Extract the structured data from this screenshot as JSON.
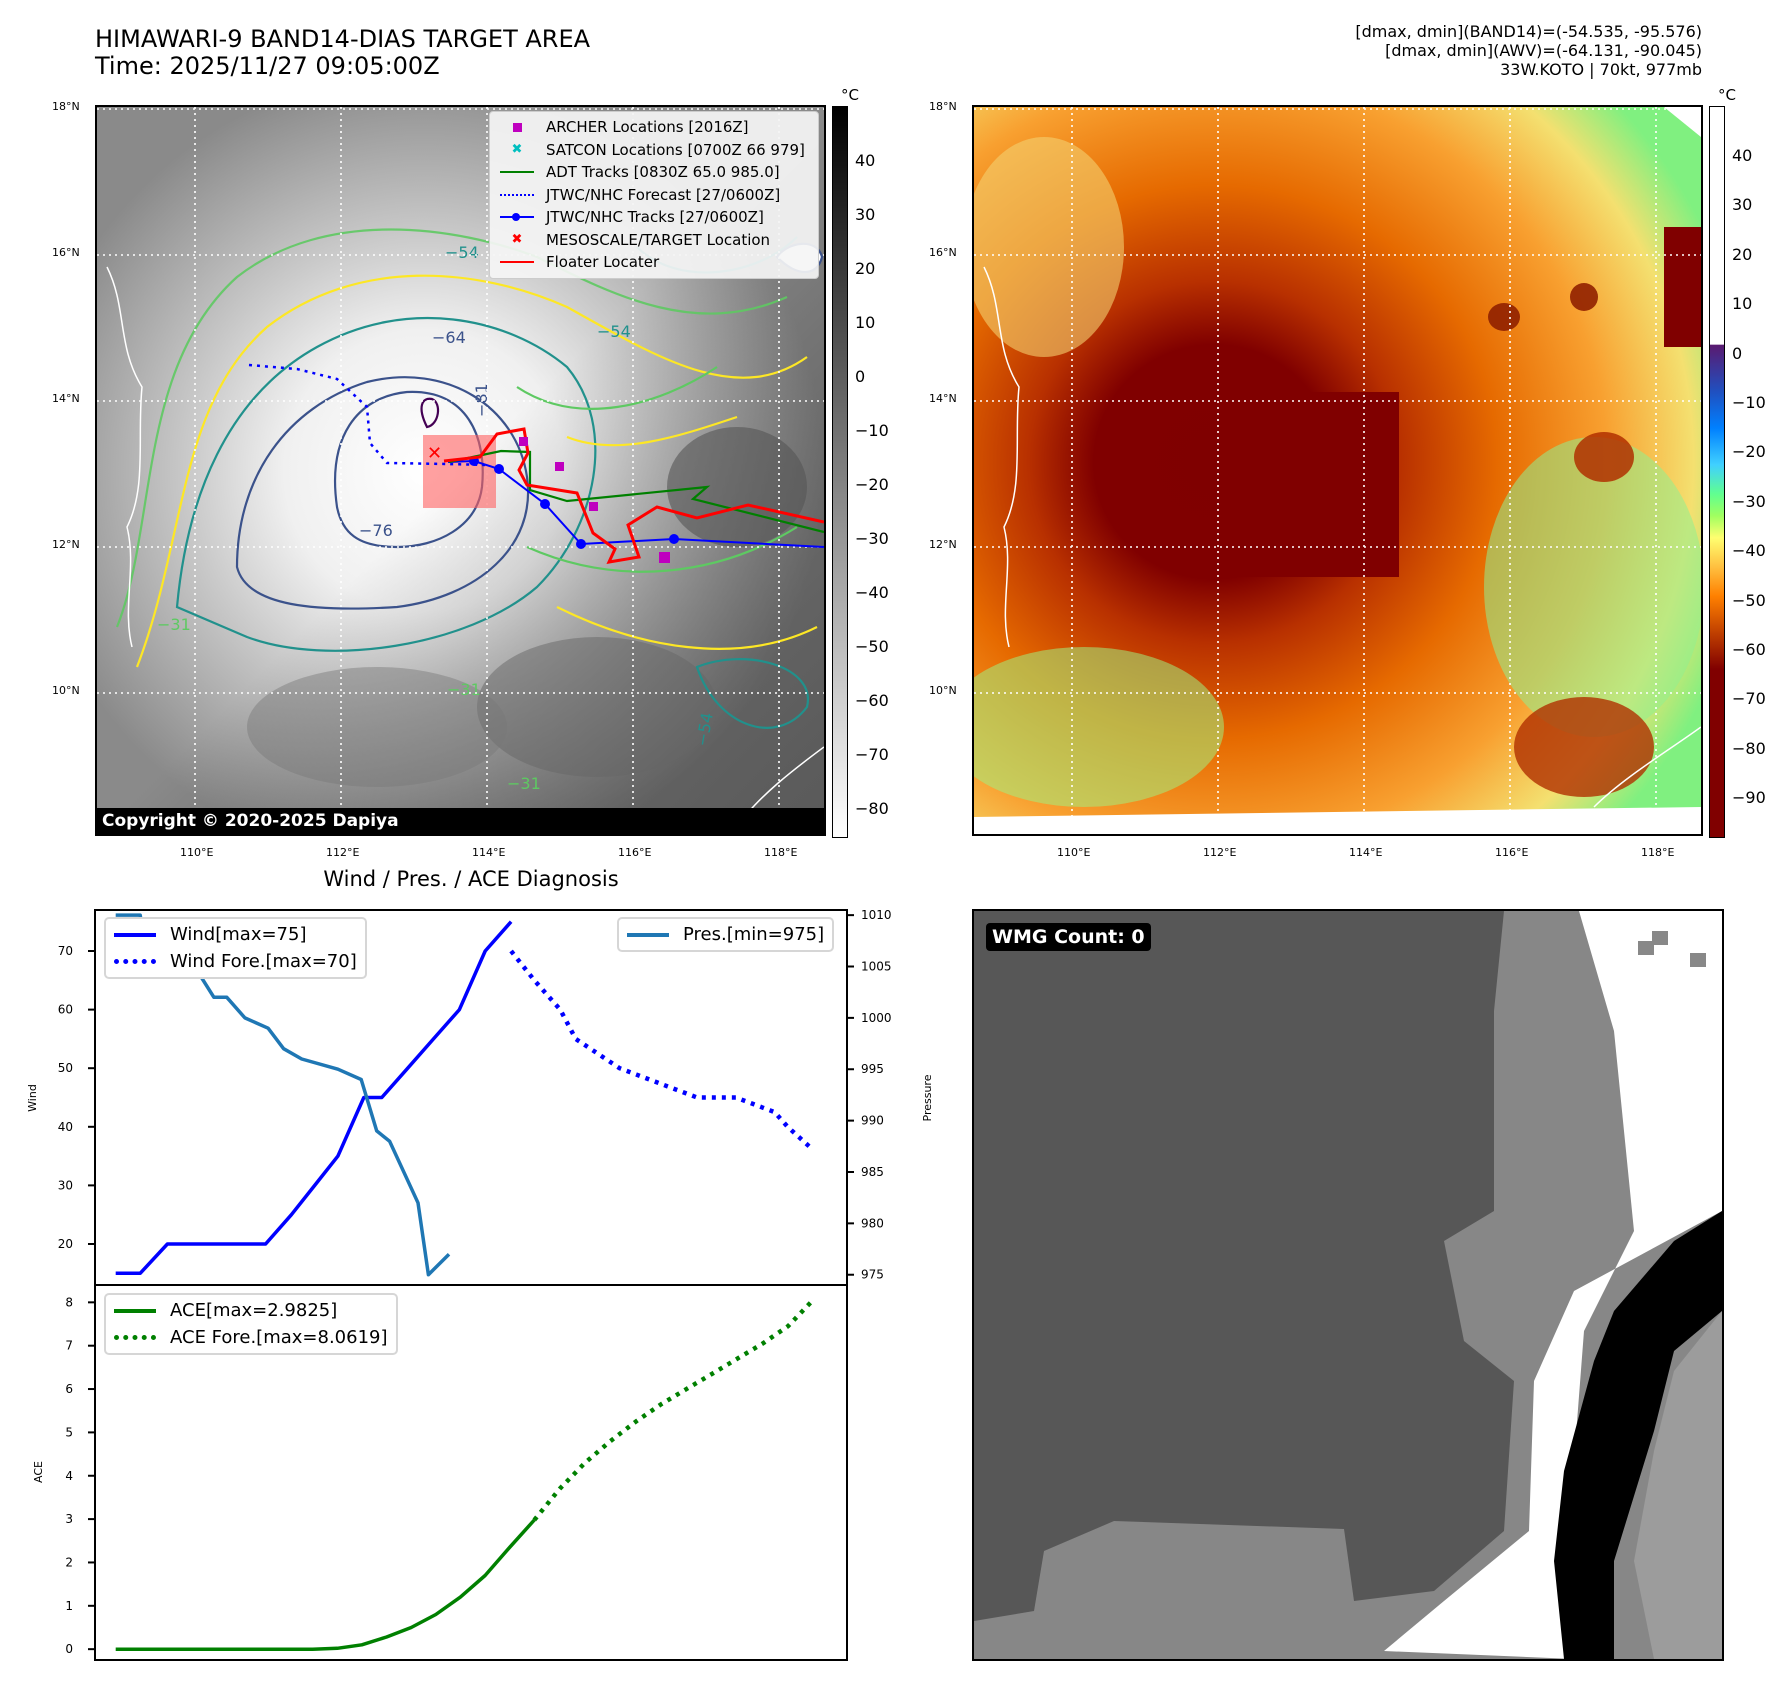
{
  "header": {
    "title_line1": "HIMAWARI-9 BAND14-DIAS TARGET AREA",
    "title_line2": "Time: 2025/11/27 09:05:00Z",
    "stats_line1": "[dmax, dmin](BAND14)=(-54.535, -95.576)",
    "stats_line2": "[dmax, dmin](AWV)=(-64.131, -90.045)",
    "stats_line3": "33W.KOTO | 70kt, 977mb"
  },
  "maps": {
    "lat_ticks": [
      "18°N",
      "16°N",
      "14°N",
      "12°N",
      "10°N"
    ],
    "lon_ticks": [
      "110°E",
      "112°E",
      "114°E",
      "116°E",
      "118°E"
    ],
    "left_map": {
      "colorbar_unit": "°C",
      "colorbar_ticks": [
        "40",
        "30",
        "20",
        "10",
        "0",
        "−10",
        "−20",
        "−30",
        "−40",
        "−50",
        "−60",
        "−70",
        "−80"
      ],
      "contour_labels": [
        "−54",
        "−64",
        "−76",
        "−81",
        "−31",
        "−31",
        "−31",
        "−54",
        "−54"
      ],
      "legend": [
        {
          "symbol": "square",
          "color": "#bf00bf",
          "label": "ARCHER Locations [2016Z]"
        },
        {
          "symbol": "x",
          "color": "#00bfbf",
          "label": "SATCON Locations [0700Z 66 979]"
        },
        {
          "symbol": "line",
          "color": "#008000",
          "label": "ADT Tracks [0830Z 65.0 985.0]"
        },
        {
          "symbol": "dotted",
          "color": "#0000ff",
          "label": "JTWC/NHC Forecast [27/0600Z]"
        },
        {
          "symbol": "line-dot",
          "color": "#0000ff",
          "label": "JTWC/NHC Tracks [27/0600Z]"
        },
        {
          "symbol": "x",
          "color": "#ff0000",
          "label": "MESOSCALE/TARGET Location"
        },
        {
          "symbol": "line",
          "color": "#ff0000",
          "label": "Floater Locater"
        }
      ],
      "copyright": "Copyright © 2020-2025 Dapiya"
    },
    "right_map": {
      "colorbar_unit": "°C",
      "colorbar_ticks": [
        "40",
        "30",
        "20",
        "10",
        "0",
        "−10",
        "−20",
        "−30",
        "−40",
        "−50",
        "−60",
        "−70",
        "−80",
        "−90"
      ]
    }
  },
  "wmg": {
    "badge": "WMG Count: 0"
  },
  "chart_data": [
    {
      "type": "line",
      "title": "Wind / Pres. / ACE Diagnosis",
      "ylabel": "Wind",
      "ylabel_right": "Pressure",
      "ylim": [
        13,
        77
      ],
      "ylim_right": [
        974,
        1010.5
      ],
      "xlim": [
        -0.8,
        28.3
      ],
      "yticks": [
        20,
        30,
        40,
        50,
        60,
        70
      ],
      "yticks_right": [
        975,
        980,
        985,
        990,
        995,
        1000,
        1005,
        1010
      ],
      "series": [
        {
          "name": "Wind[max=75]",
          "color": "#0000ff",
          "style": "solid",
          "axis": "left",
          "x": [
            0,
            1,
            2,
            3,
            4,
            5,
            6,
            7,
            8,
            9,
            10,
            11,
            12,
            13,
            14,
            15,
            16
          ],
          "values": [
            15,
            15,
            20,
            20,
            20,
            20,
            20,
            25,
            30,
            35,
            45,
            45,
            50,
            55,
            60,
            70,
            75
          ]
        },
        {
          "name": "Wind Fore.[max=70]",
          "color": "#0000ff",
          "style": "dotted",
          "axis": "left",
          "x": [
            17,
            18,
            19,
            20,
            21,
            22,
            23,
            24,
            25,
            26,
            27
          ],
          "values": [
            70,
            65,
            60,
            55,
            50,
            47.5,
            45,
            45,
            42.5,
            40,
            36
          ]
        },
        {
          "name": "Pres.[min=975]",
          "color": "#1f77b4",
          "style": "solid",
          "axis": "right",
          "x": [
            0,
            1,
            2,
            3,
            4,
            5,
            6,
            7,
            8,
            9,
            10,
            11,
            12,
            13,
            14,
            15,
            16,
            17
          ],
          "values": [
            1010,
            1010,
            1004,
            1004,
            1004,
            1002,
            1002,
            1000,
            999,
            997,
            996,
            995,
            994,
            989,
            988,
            982,
            975,
            977
          ]
        }
      ],
      "wind_x": [
        0,
        0.95,
        2,
        2.9,
        3.8,
        4.8,
        5.8,
        6.8,
        7.7,
        8.6,
        9.6,
        10.3,
        11.3,
        12.3,
        13.3,
        14.3,
        15.3,
        16.2,
        17.2,
        17.8,
        19.5,
        21,
        22.5,
        24,
        25.5,
        26,
        27
      ],
      "legend_left": [
        "Wind[max=75]",
        "Wind Fore.[max=70]"
      ],
      "legend_right": [
        "Pres.[min=975]"
      ]
    },
    {
      "type": "line",
      "title": "",
      "ylabel": "ACE",
      "ylim": [
        -0.25,
        8.4
      ],
      "xlim": [
        -0.8,
        28.3
      ],
      "yticks": [
        0,
        1,
        2,
        3,
        4,
        5,
        6,
        7,
        8
      ],
      "series": [
        {
          "name": "ACE[max=2.9825]",
          "color": "#008000",
          "style": "solid",
          "x": [
            0,
            1,
            2,
            3,
            4,
            5,
            6,
            7,
            8,
            9,
            10,
            11,
            12,
            13,
            14,
            15,
            16,
            17
          ],
          "values": [
            0,
            0,
            0,
            0,
            0,
            0,
            0,
            0,
            0,
            0.02,
            0.1,
            0.28,
            0.5,
            0.8,
            1.2,
            1.7,
            2.35,
            2.98
          ]
        },
        {
          "name": "ACE Fore.[max=8.0619]",
          "color": "#008000",
          "style": "dotted",
          "x": [
            17,
            18,
            19,
            20,
            21,
            22,
            23,
            24,
            25,
            26,
            27,
            28
          ],
          "values": [
            2.98,
            3.7,
            4.3,
            4.8,
            5.25,
            5.65,
            6.0,
            6.35,
            6.7,
            7.05,
            7.45,
            8.06
          ]
        }
      ],
      "legend": [
        "ACE[max=2.9825]",
        "ACE Fore.[max=8.0619]"
      ]
    }
  ]
}
